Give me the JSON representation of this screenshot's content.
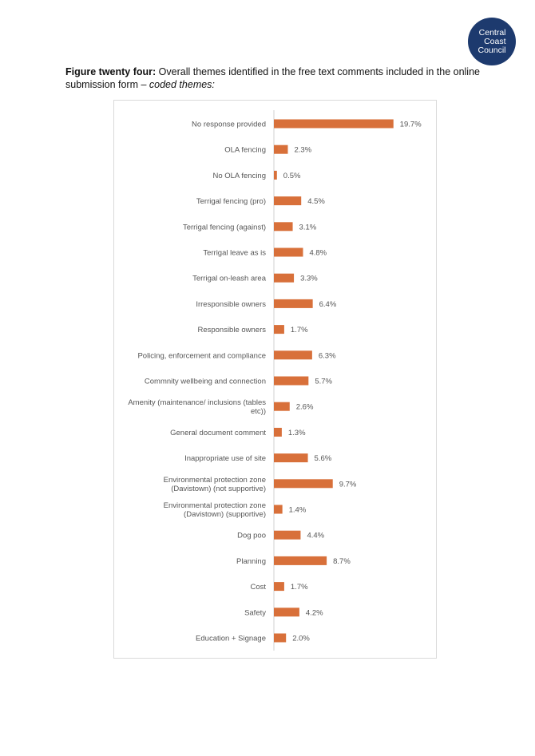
{
  "logo": {
    "text": "Central\nCoast\nCouncil",
    "color": "#1d3a6e"
  },
  "caption": {
    "label": "Figure twenty four:",
    "text": " Overall themes identified in the free text comments included in the online submission form – ",
    "italic": "coded themes:"
  },
  "chart_data": {
    "type": "bar",
    "orientation": "horizontal",
    "categories": [
      "No response provided",
      "OLA fencing",
      "No OLA fencing",
      "Terrigal fencing (pro)",
      "Terrigal fencing (against)",
      "Terrigal leave as is",
      "Terrigal on-leash area",
      "Irresponsible owners",
      "Responsible owners",
      "Policing, enforcement and compliance",
      "Commnity wellbeing and connection",
      "Amenity (maintenance/ inclusions (tables etc))",
      "General document comment",
      "Inappropriate use of site",
      "Environmental protection zone (Davistown) (not supportive)",
      "Environmental protection zone (Davistown) (supportive)",
      "Dog poo",
      "Planning",
      "Cost",
      "Safety",
      "Education + Signage"
    ],
    "category_lines": [
      [
        "No response provided"
      ],
      [
        "OLA fencing"
      ],
      [
        "No OLA fencing"
      ],
      [
        "Terrigal fencing (pro)"
      ],
      [
        "Terrigal fencing (against)"
      ],
      [
        "Terrigal leave as is"
      ],
      [
        "Terrigal on-leash area"
      ],
      [
        "Irresponsible owners"
      ],
      [
        "Responsible owners"
      ],
      [
        "Policing, enforcement and compliance"
      ],
      [
        "Commnity wellbeing and connection"
      ],
      [
        "Amenity (maintenance/ inclusions (tables",
        "etc))"
      ],
      [
        "General document comment"
      ],
      [
        "Inappropriate use of site"
      ],
      [
        "Environmental protection zone",
        "(Davistown) (not supportive)"
      ],
      [
        "Environmental protection zone",
        "(Davistown) (supportive)"
      ],
      [
        "Dog poo"
      ],
      [
        "Planning"
      ],
      [
        "Cost"
      ],
      [
        "Safety"
      ],
      [
        "Education + Signage"
      ]
    ],
    "values": [
      19.7,
      2.3,
      0.5,
      4.5,
      3.1,
      4.8,
      3.3,
      6.4,
      1.7,
      6.3,
      5.7,
      2.6,
      1.3,
      5.6,
      9.7,
      1.4,
      4.4,
      8.7,
      1.7,
      4.2,
      2.0
    ],
    "value_labels": [
      "19.7%",
      "2.3%",
      "0.5%",
      "4.5%",
      "3.1%",
      "4.8%",
      "3.3%",
      "6.4%",
      "1.7%",
      "6.3%",
      "5.7%",
      "2.6%",
      "1.3%",
      "5.6%",
      "9.7%",
      "1.4%",
      "4.4%",
      "8.7%",
      "1.7%",
      "4.2%",
      "2.0%"
    ],
    "unit": "%",
    "xlim": [
      0,
      20
    ],
    "bar_color": "#d8703a",
    "axis_color": "#d0d0d0",
    "label_color": "#555555",
    "grid": false,
    "legend": false
  }
}
